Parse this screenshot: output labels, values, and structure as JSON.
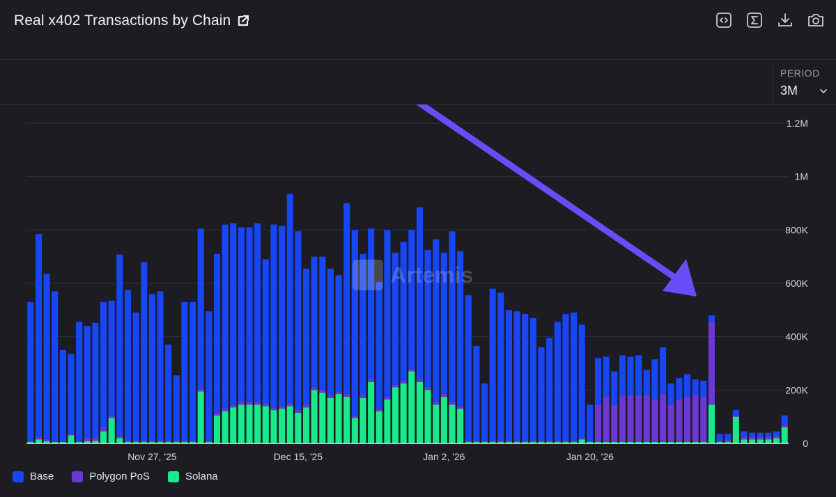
{
  "header": {
    "title": "Real x402 Transactions by Chain",
    "toolbar": [
      {
        "icon": "code-icon"
      },
      {
        "icon": "sigma-icon"
      },
      {
        "icon": "download-icon"
      },
      {
        "icon": "camera-icon"
      }
    ]
  },
  "period": {
    "label": "PERIOD",
    "value": "3M"
  },
  "watermark": "Artemis",
  "colors": {
    "Base": "#1746f5",
    "Polygon PoS": "#6b38d4",
    "Solana": "#18e98b",
    "arrow": "#6a4cf6",
    "background": "#1c1c22"
  },
  "chart_data": {
    "type": "bar",
    "stacked": true,
    "title": "Real x402 Transactions by Chain",
    "y_ticks": [
      "0",
      "200K",
      "400K",
      "600K",
      "800K",
      "1M",
      "1.2M"
    ],
    "ylim": [
      0,
      1200000
    ],
    "x_ticks": [
      {
        "label": "Nov 27, '25",
        "index": 15
      },
      {
        "label": "Dec 15, '25",
        "index": 33
      },
      {
        "label": "Jan 2, '26",
        "index": 51
      },
      {
        "label": "Jan 20, '26",
        "index": 69
      }
    ],
    "grid": true,
    "legend_position": "bottom-left",
    "series": [
      {
        "name": "Solana",
        "values": [
          5000,
          15000,
          8000,
          5000,
          5000,
          30000,
          5000,
          8000,
          10000,
          45000,
          95000,
          20000,
          5000,
          5000,
          5000,
          5000,
          5000,
          5000,
          5000,
          5000,
          5000,
          195000,
          5000,
          105000,
          120000,
          135000,
          145000,
          145000,
          145000,
          140000,
          125000,
          130000,
          140000,
          115000,
          135000,
          200000,
          190000,
          170000,
          185000,
          175000,
          95000,
          170000,
          230000,
          120000,
          165000,
          210000,
          225000,
          270000,
          230000,
          200000,
          145000,
          175000,
          145000,
          130000,
          5000,
          5000,
          5000,
          5000,
          5000,
          5000,
          5000,
          5000,
          5000,
          5000,
          5000,
          5000,
          5000,
          5000,
          15000,
          5000,
          5000,
          5000,
          5000,
          5000,
          5000,
          5000,
          5000,
          5000,
          5000,
          5000,
          5000,
          5000,
          5000,
          5000,
          145000,
          5000,
          5000,
          100000,
          15000,
          15000,
          15000,
          15000,
          20000,
          60000
        ]
      },
      {
        "name": "Polygon PoS",
        "values": [
          5000,
          10000,
          8000,
          0,
          0,
          5000,
          0,
          12000,
          12000,
          15000,
          10000,
          8000,
          5000,
          5000,
          5000,
          5000,
          5000,
          5000,
          5000,
          5000,
          5000,
          10000,
          5000,
          10000,
          10000,
          10000,
          10000,
          10000,
          10000,
          10000,
          10000,
          10000,
          10000,
          10000,
          10000,
          10000,
          10000,
          10000,
          10000,
          10000,
          10000,
          10000,
          10000,
          10000,
          10000,
          10000,
          10000,
          10000,
          10000,
          10000,
          10000,
          10000,
          10000,
          10000,
          5000,
          5000,
          5000,
          5000,
          5000,
          5000,
          5000,
          5000,
          5000,
          5000,
          5000,
          5000,
          5000,
          5000,
          5000,
          5000,
          140000,
          170000,
          140000,
          175000,
          175000,
          175000,
          175000,
          160000,
          180000,
          140000,
          160000,
          170000,
          175000,
          170000,
          310000,
          5000,
          10000,
          5000,
          10000,
          10000,
          10000,
          10000,
          10000,
          10000
        ]
      },
      {
        "name": "Base",
        "values": [
          520000,
          760000,
          620000,
          565000,
          345000,
          300000,
          450000,
          420000,
          430000,
          470000,
          430000,
          680000,
          565000,
          480000,
          670000,
          550000,
          560000,
          360000,
          245000,
          520000,
          520000,
          600000,
          485000,
          595000,
          690000,
          680000,
          655000,
          655000,
          670000,
          540000,
          685000,
          675000,
          785000,
          670000,
          510000,
          490000,
          500000,
          475000,
          435000,
          715000,
          695000,
          530000,
          565000,
          475000,
          625000,
          495000,
          520000,
          520000,
          645000,
          515000,
          610000,
          530000,
          640000,
          580000,
          545000,
          355000,
          215000,
          570000,
          555000,
          490000,
          485000,
          475000,
          460000,
          350000,
          385000,
          445000,
          475000,
          480000,
          425000,
          135000,
          175000,
          150000,
          125000,
          150000,
          145000,
          150000,
          95000,
          150000,
          175000,
          80000,
          80000,
          85000,
          60000,
          60000,
          25000,
          25000,
          20000,
          20000,
          20000,
          15000,
          15000,
          15000,
          15000,
          35000
        ]
      }
    ]
  }
}
